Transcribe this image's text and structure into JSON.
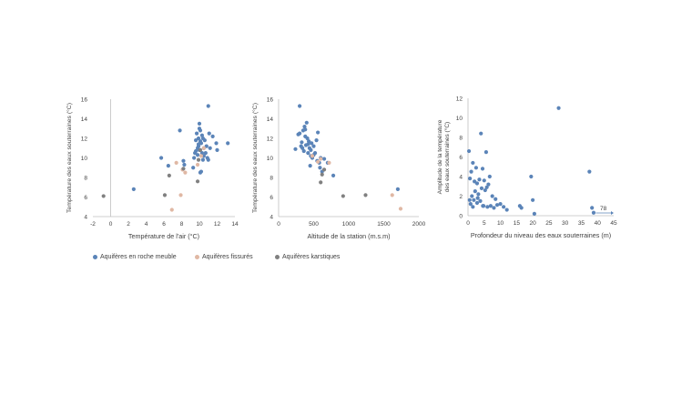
{
  "colors": {
    "meuble": "#5b84b8",
    "fissures": "#e0b8a4",
    "karstiques": "#808080",
    "axis": "#bfbfbf",
    "text": "#404040"
  },
  "legend": [
    {
      "key": "meuble",
      "label": "Aquifères en roche meuble"
    },
    {
      "key": "fissures",
      "label": "Aquifères fissurés"
    },
    {
      "key": "karstiques",
      "label": "Aquifères karstiques"
    }
  ],
  "chart_data": [
    {
      "type": "scatter",
      "title": "",
      "xlabel": "Température de l'air (°C)",
      "ylabel": "Température des eaux souterraines (°C)",
      "xlim": [
        -2,
        14
      ],
      "ylim": [
        4,
        16
      ],
      "xticks": [
        "-2",
        "0",
        "2",
        "4",
        "6",
        "8",
        "10",
        "12",
        "14"
      ],
      "yticks": [
        "4",
        "6",
        "8",
        "10",
        "12",
        "14",
        "16"
      ],
      "grid": false,
      "series": [
        {
          "key": "meuble",
          "name": "Aquifères en roche meuble",
          "x": [
            2.6,
            5.7,
            6.5,
            7.8,
            8.2,
            9.3,
            9.5,
            9.6,
            9.7,
            9.8,
            9.8,
            9.9,
            9.9,
            10.0,
            10.0,
            10.1,
            10.1,
            10.2,
            10.3,
            10.3,
            10.4,
            10.5,
            10.5,
            10.6,
            10.7,
            10.8,
            10.9,
            11.0,
            11.1,
            11.2,
            11.5,
            11.9,
            12.0,
            13.2,
            11.0,
            9.9,
            10.0,
            10.1,
            9.6,
            10.4,
            9.4,
            10.2,
            8.3
          ],
          "y": [
            6.8,
            10.0,
            9.2,
            12.8,
            9.7,
            9.0,
            10.5,
            11.8,
            12.5,
            11.0,
            10.3,
            12.0,
            11.4,
            13.5,
            10.8,
            12.8,
            8.5,
            11.5,
            10.5,
            12.3,
            9.8,
            11.0,
            10.2,
            11.8,
            10.5,
            11.2,
            10.0,
            15.3,
            12.5,
            11.0,
            12.2,
            11.5,
            10.8,
            11.5,
            9.8,
            11.2,
            13.0,
            11.7,
            10.7,
            12.0,
            10.0,
            8.6,
            9.3
          ]
        },
        {
          "key": "fissures",
          "name": "Aquifères fissurés",
          "x": [
            6.9,
            7.4,
            7.9,
            8.1,
            8.4,
            9.8,
            10.2,
            10.5
          ],
          "y": [
            4.7,
            9.5,
            6.2,
            8.8,
            8.5,
            9.3,
            10.2,
            11.0
          ]
        },
        {
          "key": "karstiques",
          "name": "Aquifères karstiques",
          "x": [
            -0.8,
            6.1,
            6.6,
            8.2,
            9.8,
            9.9,
            10.1
          ],
          "y": [
            6.1,
            6.2,
            8.2,
            8.9,
            7.6,
            9.8,
            10.8
          ]
        }
      ]
    },
    {
      "type": "scatter",
      "title": "",
      "xlabel": "Altitude de la station (m.s.m)",
      "ylabel": "Température des eaux souterraines (°C)",
      "xlim": [
        0,
        2000
      ],
      "ylim": [
        4,
        16
      ],
      "xticks": [
        "0",
        "500",
        "1000",
        "1500",
        "2000"
      ],
      "yticks": [
        "4",
        "6",
        "8",
        "10",
        "12",
        "14",
        "16"
      ],
      "grid": false,
      "series": [
        {
          "key": "meuble",
          "name": "Aquifères en roche meuble",
          "x": [
            240,
            280,
            300,
            320,
            340,
            350,
            360,
            370,
            380,
            390,
            400,
            410,
            420,
            430,
            440,
            450,
            460,
            470,
            480,
            500,
            520,
            540,
            560,
            580,
            600,
            620,
            650,
            700,
            780,
            1700,
            300,
            330,
            380,
            420,
            460,
            500,
            550,
            590
          ],
          "y": [
            10.9,
            12.4,
            15.3,
            11.2,
            11.0,
            12.8,
            10.7,
            13.2,
            12.2,
            11.3,
            13.6,
            12.0,
            10.5,
            11.7,
            11.0,
            9.2,
            10.2,
            11.5,
            10.0,
            11.2,
            10.5,
            11.8,
            12.6,
            9.5,
            10.0,
            8.6,
            9.9,
            9.5,
            8.2,
            6.8,
            12.5,
            11.6,
            12.9,
            11.4,
            10.8,
            10.3,
            9.7,
            9.0
          ]
        },
        {
          "key": "fissures",
          "name": "Aquifères fissurés",
          "x": [
            480,
            600,
            720,
            1620,
            1740,
            560
          ],
          "y": [
            10.2,
            9.9,
            9.5,
            6.2,
            4.8,
            9.6
          ]
        },
        {
          "key": "karstiques",
          "name": "Aquifères karstiques",
          "x": [
            600,
            620,
            920,
            1240,
            650
          ],
          "y": [
            7.5,
            8.3,
            6.1,
            6.2,
            8.8
          ]
        }
      ]
    },
    {
      "type": "scatter",
      "title": "",
      "xlabel": "Profondeur du niveau des eaux souterraines (m)",
      "ylabel": "Amplitude de la température des eaux souterraines (°C)",
      "xlim": [
        0,
        45
      ],
      "ylim": [
        0,
        12
      ],
      "xticks": [
        "0",
        "5",
        "10",
        "15",
        "20",
        "25",
        "30",
        "35",
        "40",
        "45"
      ],
      "yticks": [
        "0",
        "2",
        "4",
        "6",
        "8",
        "10",
        "12"
      ],
      "grid": false,
      "annotation": "78",
      "series": [
        {
          "key": "meuble",
          "name": "Aquifères en roche meuble",
          "x": [
            0.3,
            0.5,
            0.6,
            0.8,
            1.0,
            1.2,
            1.5,
            1.8,
            2.0,
            2.2,
            2.5,
            2.8,
            3.0,
            3.2,
            3.5,
            3.8,
            4.0,
            4.2,
            4.5,
            4.8,
            5.0,
            5.3,
            5.6,
            6.0,
            6.3,
            6.7,
            7.0,
            7.5,
            8.0,
            8.5,
            9.0,
            10.0,
            11.0,
            12.0,
            16.0,
            16.5,
            19.5,
            20.0,
            20.5,
            28.0,
            37.5,
            38.3,
            38.8,
            1.5,
            2.8,
            4.6,
            5.8
          ],
          "y": [
            6.6,
            1.6,
            3.8,
            1.2,
            4.5,
            2.0,
            5.4,
            1.6,
            3.5,
            2.5,
            4.9,
            3.3,
            1.8,
            2.2,
            3.7,
            1.5,
            8.4,
            2.8,
            4.8,
            1.0,
            3.6,
            2.6,
            6.5,
            0.9,
            3.2,
            4.0,
            1.0,
            2.0,
            0.8,
            1.7,
            1.1,
            1.2,
            0.9,
            0.6,
            1.0,
            0.8,
            4.0,
            1.6,
            0.2,
            11.0,
            4.5,
            0.8,
            0.3,
            0.9,
            1.3,
            1.0,
            2.9
          ]
        }
      ]
    }
  ]
}
